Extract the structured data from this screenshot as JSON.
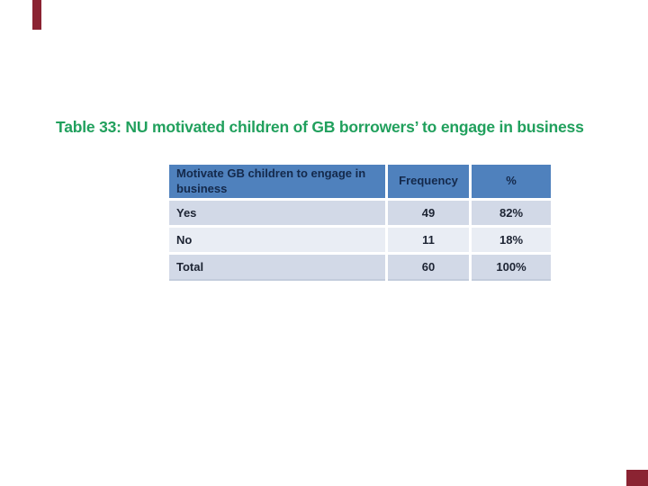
{
  "slide": {
    "title": "Table 33: NU motivated children of GB borrowers’ to engage in business"
  },
  "table": {
    "columns": [
      {
        "label": "Motivate GB children to engage in business"
      },
      {
        "label": "Frequency"
      },
      {
        "label": "%"
      }
    ],
    "rows": [
      {
        "label": "Yes",
        "frequency": "49",
        "percent": "82%"
      },
      {
        "label": "No",
        "frequency": "11",
        "percent": "18%"
      },
      {
        "label": "Total",
        "frequency": "60",
        "percent": "100%"
      }
    ]
  },
  "colors": {
    "title_green": "#21a05d",
    "header_blue": "#4f81bd",
    "header_text": "#14294b",
    "row_fill_dark": "#d2d9e7",
    "row_fill_light": "#e9edf4",
    "body_text": "#1d2433",
    "accent_maroon": "#8b2332",
    "background": "#ffffff"
  }
}
